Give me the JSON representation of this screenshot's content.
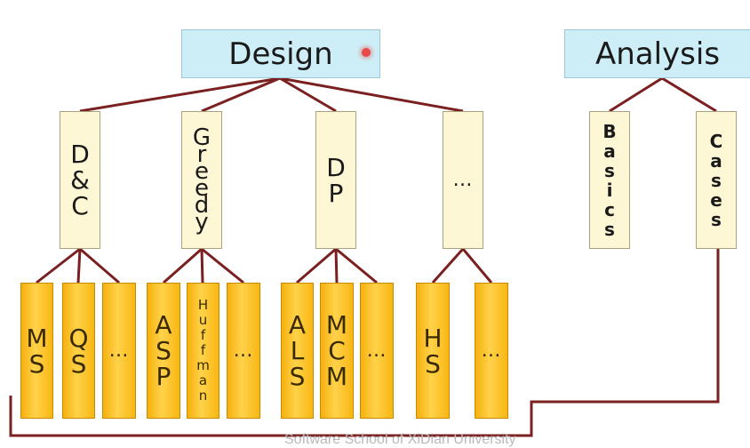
{
  "root": {
    "label": "Design"
  },
  "analysis": {
    "label": "Analysis"
  },
  "categories": [
    {
      "label": "D\n&\nC"
    },
    {
      "label": "G\nr\ne\ne\nd\ny"
    },
    {
      "label": "D\nP"
    },
    {
      "label": "…"
    }
  ],
  "analysis_children": [
    {
      "label": "B\na\ns\ni\nc\ns"
    },
    {
      "label": "C\na\ns\ne\ns"
    }
  ],
  "leaves": [
    {
      "label": "M\nS"
    },
    {
      "label": "Q\nS"
    },
    {
      "label": "…"
    },
    {
      "label": "A\nS\nP"
    },
    {
      "label": "H\nu\nf\nf\nm\na\nn"
    },
    {
      "label": "…"
    },
    {
      "label": "A\nL\nS"
    },
    {
      "label": "M\nC\nM"
    },
    {
      "label": "…"
    },
    {
      "label": "H\nS"
    },
    {
      "label": "…"
    }
  ],
  "watermark": "Software School of XiDian University",
  "colors": {
    "connector": "#7b2020",
    "root_fill": "#cdeef6",
    "category_fill": "#fdf7d6",
    "leaf_fill": "#f8b713"
  }
}
